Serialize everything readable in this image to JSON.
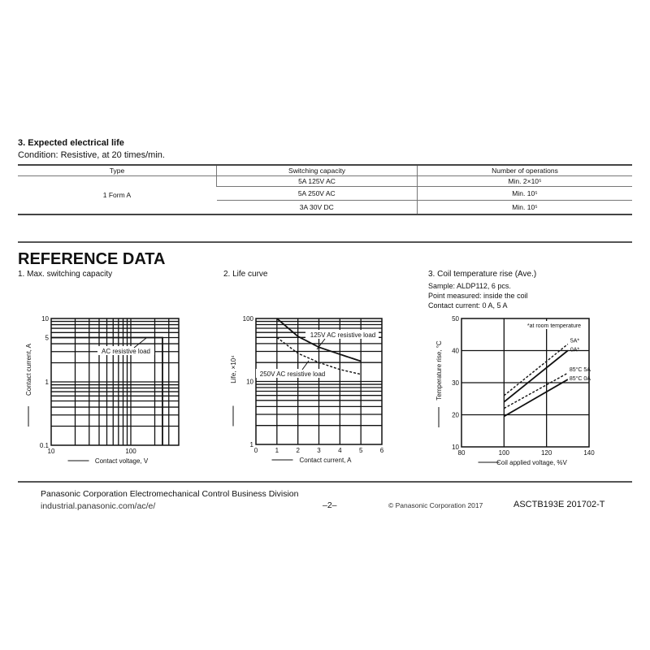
{
  "life": {
    "title": "3. Expected electrical life",
    "condition": "Condition: Resistive, at 20 times/min.",
    "headers": [
      "Type",
      "Switching capacity",
      "Number of operations"
    ],
    "type": "1 Form A",
    "rows": [
      [
        "5A 125V AC",
        "Min. 2×10⁵"
      ],
      [
        "5A 250V AC",
        "Min. 10⁵"
      ],
      [
        "3A 30V DC",
        "Min. 10⁵"
      ]
    ]
  },
  "reference": {
    "title": "REFERENCE DATA",
    "c1_title": "1. Max. switching capacity",
    "c2_title": "2. Life curve",
    "c3_title": "3. Coil temperature rise (Ave.)",
    "c3_notes": [
      "Sample: ALDP112, 6 pcs.",
      "Point measured: inside the coil",
      "Contact current: 0 A, 5 A"
    ]
  },
  "chart_data": [
    {
      "type": "line",
      "title": "1. Max. switching capacity",
      "xlabel": "Contact voltage, V",
      "ylabel": "Contact current, A",
      "xscale": "log",
      "yscale": "log",
      "xlim": [
        10,
        400
      ],
      "ylim": [
        0.1,
        10
      ],
      "xticks": [
        "10",
        "100"
      ],
      "yticks": [
        "0.1",
        "1",
        "5",
        "10"
      ],
      "grid": true,
      "series": [
        {
          "name": "AC resistive load",
          "x": [
            10,
            250,
            250
          ],
          "y": [
            5,
            5,
            0.1
          ]
        }
      ]
    },
    {
      "type": "line",
      "title": "2. Life curve",
      "xlabel": "Contact current, A",
      "ylabel": "Life, ×10⁴",
      "yscale": "log",
      "xlim": [
        0,
        6
      ],
      "ylim": [
        1,
        100
      ],
      "xticks": [
        "0",
        "1",
        "2",
        "3",
        "4",
        "5",
        "6"
      ],
      "yticks": [
        "1",
        "10",
        "100"
      ],
      "grid": true,
      "series": [
        {
          "name": "125V AC resistive load",
          "style": "solid",
          "x": [
            1,
            2,
            3,
            4,
            5
          ],
          "y": [
            100,
            52,
            35,
            27,
            21
          ]
        },
        {
          "name": "250V AC resistive load",
          "style": "dashed",
          "x": [
            1,
            2,
            3,
            4,
            5
          ],
          "y": [
            50,
            28,
            20,
            15.5,
            13
          ]
        }
      ]
    },
    {
      "type": "line",
      "title": "3. Coil temperature rise (Ave.)",
      "xlabel": "Coil applied voltage, %V",
      "ylabel": "Temperature rise, °C",
      "xlim": [
        80,
        140
      ],
      "ylim": [
        10,
        50
      ],
      "xticks": [
        "80",
        "100",
        "120",
        "140"
      ],
      "yticks": [
        "10",
        "20",
        "30",
        "40",
        "50"
      ],
      "grid": true,
      "annotation": "*at room temperature",
      "series": [
        {
          "name": "5A*",
          "style": "dashed",
          "x": [
            100,
            130
          ],
          "y": [
            26,
            42
          ]
        },
        {
          "name": "0A*",
          "style": "solid",
          "x": [
            100,
            130
          ],
          "y": [
            24,
            40
          ]
        },
        {
          "name": "85°C 5A",
          "style": "dashed",
          "x": [
            100,
            130
          ],
          "y": [
            22,
            33
          ]
        },
        {
          "name": "85°C 0A",
          "style": "solid",
          "x": [
            100,
            130
          ],
          "y": [
            19.5,
            31
          ]
        }
      ]
    }
  ],
  "footer": {
    "company": "Panasonic Corporation Electromechanical Control Business Division",
    "url": "industrial.panasonic.com/ac/e/",
    "page": "–2–",
    "copyright": "© Panasonic Corporation 2017",
    "doc": "ASCTB193E  201702-T"
  }
}
